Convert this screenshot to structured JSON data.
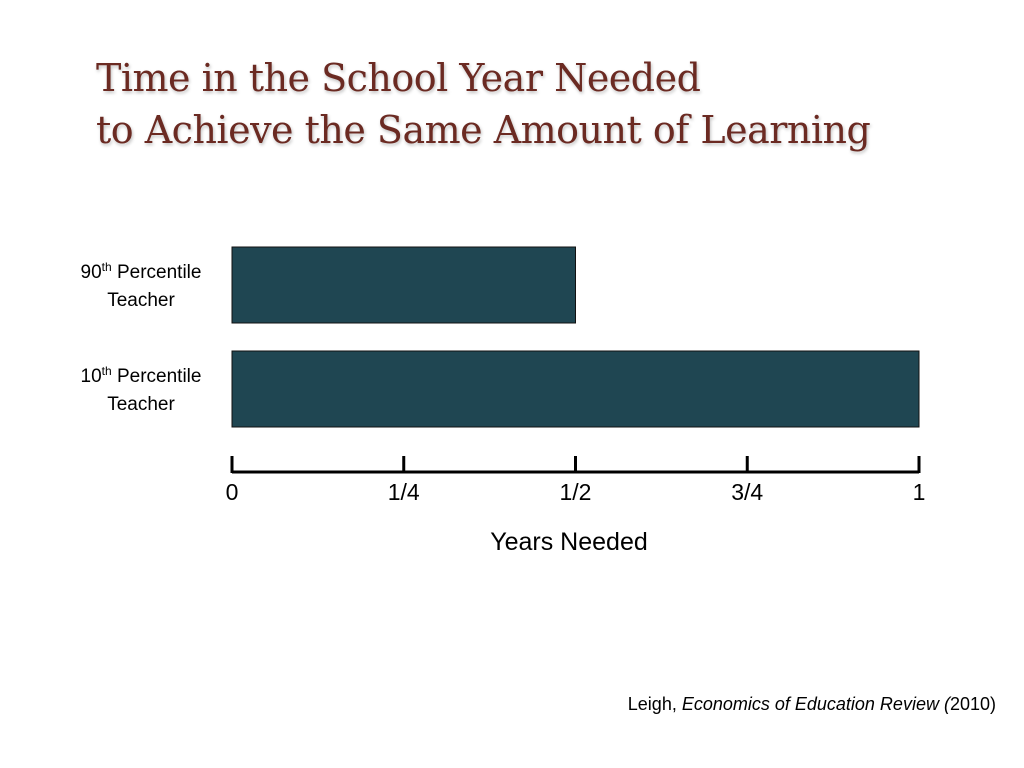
{
  "title": {
    "line1": "Time in the School Year Needed",
    "line2": "to Achieve the Same Amount of Learning"
  },
  "colors": {
    "bar": "#1f4652",
    "title": "#6b2a22"
  },
  "chart_data": {
    "type": "bar",
    "orientation": "horizontal",
    "categories": [
      {
        "pre": "90",
        "sup": "th",
        "post": " Percentile",
        "line2": "Teacher"
      },
      {
        "pre": "10",
        "sup": "th",
        "post": " Percentile",
        "line2": "Teacher"
      }
    ],
    "values": [
      0.5,
      1.0
    ],
    "xlim": [
      0,
      1
    ],
    "ticks": [
      {
        "value": 0,
        "label": "0"
      },
      {
        "value": 0.25,
        "label": "1/4"
      },
      {
        "value": 0.5,
        "label": "1/2"
      },
      {
        "value": 0.75,
        "label": "3/4"
      },
      {
        "value": 1,
        "label": "1"
      }
    ],
    "xlabel": "Years Needed",
    "grid": false,
    "legend": "none"
  },
  "citation": {
    "author": "Leigh, ",
    "journal": "Economics of Education Review (",
    "year": "2010)"
  }
}
